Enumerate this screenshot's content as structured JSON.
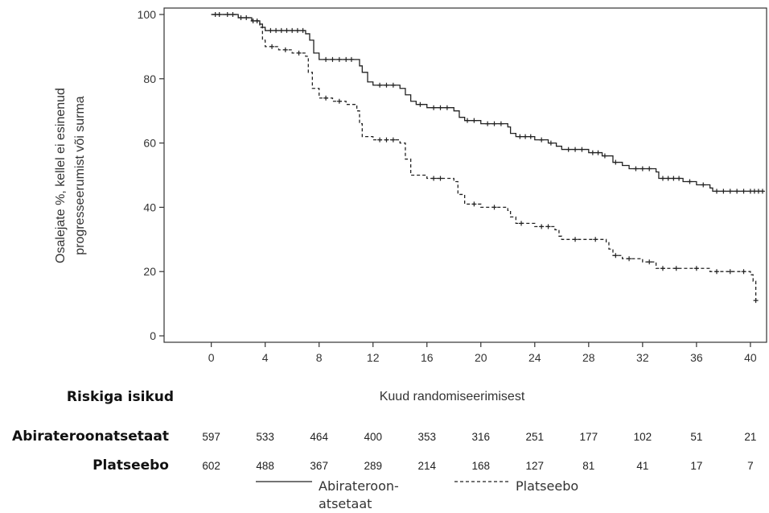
{
  "chart_data": {
    "type": "line",
    "title": "",
    "xlabel": "Kuud randomiseerimisest",
    "ylabel": [
      "Osalejate %, kellel ei esinenud",
      "progresseerumist või surma"
    ],
    "xlim": [
      -3.5,
      41.2
    ],
    "ylim": [
      -2,
      102
    ],
    "x_ticks": [
      0,
      4,
      8,
      12,
      16,
      20,
      24,
      28,
      32,
      36,
      40
    ],
    "y_ticks": [
      0,
      20,
      40,
      60,
      80,
      100
    ],
    "grid": false,
    "series": [
      {
        "name": "Abirateroon-atsetaat",
        "style": "solid",
        "color": "#222222",
        "points": [
          [
            0,
            100
          ],
          [
            1,
            100
          ],
          [
            2,
            99
          ],
          [
            3,
            98
          ],
          [
            3.6,
            97
          ],
          [
            3.8,
            96
          ],
          [
            4,
            95
          ],
          [
            7,
            94
          ],
          [
            7.3,
            92
          ],
          [
            7.6,
            88
          ],
          [
            8,
            86
          ],
          [
            10.8,
            86
          ],
          [
            11,
            84
          ],
          [
            11.2,
            82
          ],
          [
            11.6,
            79
          ],
          [
            12,
            78
          ],
          [
            14,
            77
          ],
          [
            14.4,
            75
          ],
          [
            14.8,
            73
          ],
          [
            15.2,
            72
          ],
          [
            16,
            71
          ],
          [
            18,
            70
          ],
          [
            18.4,
            68
          ],
          [
            18.8,
            67
          ],
          [
            20,
            66
          ],
          [
            22,
            65
          ],
          [
            22.2,
            63
          ],
          [
            22.6,
            62
          ],
          [
            24,
            61
          ],
          [
            25,
            60
          ],
          [
            25.6,
            59
          ],
          [
            26,
            58
          ],
          [
            28,
            57
          ],
          [
            29,
            56
          ],
          [
            29.8,
            54
          ],
          [
            30.5,
            53
          ],
          [
            31,
            52
          ],
          [
            33,
            51
          ],
          [
            33.2,
            49
          ],
          [
            35,
            48
          ],
          [
            36,
            47
          ],
          [
            37,
            46
          ],
          [
            37.2,
            45
          ],
          [
            41,
            45
          ]
        ],
        "censor_x": [
          0.3,
          0.6,
          1.2,
          1.6,
          2.2,
          2.6,
          3.1,
          3.4,
          4.4,
          4.8,
          5.2,
          5.6,
          6.0,
          6.4,
          6.8,
          8.5,
          9.0,
          9.5,
          10.0,
          10.4,
          12.5,
          13.0,
          13.5,
          15.5,
          16.5,
          17.0,
          17.5,
          19.0,
          19.5,
          20.5,
          21.0,
          21.5,
          22.9,
          23.3,
          23.7,
          24.5,
          25.2,
          26.5,
          27.0,
          27.5,
          28.3,
          28.7,
          29.2,
          30.0,
          31.5,
          32.0,
          32.5,
          33.5,
          33.9,
          34.3,
          34.7,
          35.5,
          36.5,
          37.5,
          38.0,
          38.5,
          39.0,
          39.5,
          40.0,
          40.3,
          40.6,
          40.9
        ]
      },
      {
        "name": "Platseebo",
        "style": "dashed",
        "color": "#222222",
        "points": [
          [
            0,
            100
          ],
          [
            1,
            100
          ],
          [
            2,
            99
          ],
          [
            3,
            98
          ],
          [
            3.6,
            96
          ],
          [
            3.8,
            92
          ],
          [
            4,
            90
          ],
          [
            5,
            89
          ],
          [
            6,
            88
          ],
          [
            7,
            87
          ],
          [
            7.2,
            82
          ],
          [
            7.5,
            77
          ],
          [
            8,
            74
          ],
          [
            9,
            73
          ],
          [
            10,
            72
          ],
          [
            10.8,
            70
          ],
          [
            11,
            66
          ],
          [
            11.2,
            62
          ],
          [
            12,
            61
          ],
          [
            14,
            60
          ],
          [
            14.4,
            55
          ],
          [
            14.8,
            50
          ],
          [
            16,
            49
          ],
          [
            18,
            48
          ],
          [
            18.3,
            44
          ],
          [
            18.8,
            41
          ],
          [
            20,
            40
          ],
          [
            22,
            39
          ],
          [
            22.2,
            37
          ],
          [
            22.6,
            35
          ],
          [
            24,
            34
          ],
          [
            25.5,
            33
          ],
          [
            25.8,
            31
          ],
          [
            26,
            30
          ],
          [
            28,
            30
          ],
          [
            29.3,
            29
          ],
          [
            29.5,
            27
          ],
          [
            29.8,
            25
          ],
          [
            30.5,
            24
          ],
          [
            32,
            23
          ],
          [
            33,
            21
          ],
          [
            37,
            20
          ],
          [
            40,
            19
          ],
          [
            40.2,
            17
          ],
          [
            40.4,
            11
          ]
        ],
        "censor_x": [
          4.5,
          5.5,
          6.5,
          8.5,
          9.5,
          12.5,
          13.0,
          13.5,
          16.5,
          17.0,
          19.5,
          21.0,
          23.0,
          24.5,
          25.0,
          27.0,
          28.5,
          30.0,
          31.0,
          32.5,
          33.5,
          34.5,
          36.0,
          37.5,
          38.5,
          39.5,
          40.4
        ]
      }
    ],
    "risk_table": {
      "title": "Riskiga isikud",
      "rows": [
        {
          "label": "Abirateroonatsetaat",
          "values": [
            "597",
            "533",
            "464",
            "400",
            "353",
            "316",
            "251",
            "177",
            "102",
            "51",
            "21"
          ]
        },
        {
          "label": "Platseebo",
          "values": [
            "602",
            "488",
            "367",
            "289",
            "214",
            "168",
            "127",
            "81",
            "41",
            "17",
            "7"
          ]
        }
      ]
    },
    "legend": {
      "placement": "bottom-center",
      "items": [
        {
          "label_lines": [
            "Abirateroon-",
            "atsetaat"
          ],
          "style": "solid"
        },
        {
          "label_lines": [
            "Platseebo"
          ],
          "style": "dashed"
        }
      ]
    }
  }
}
